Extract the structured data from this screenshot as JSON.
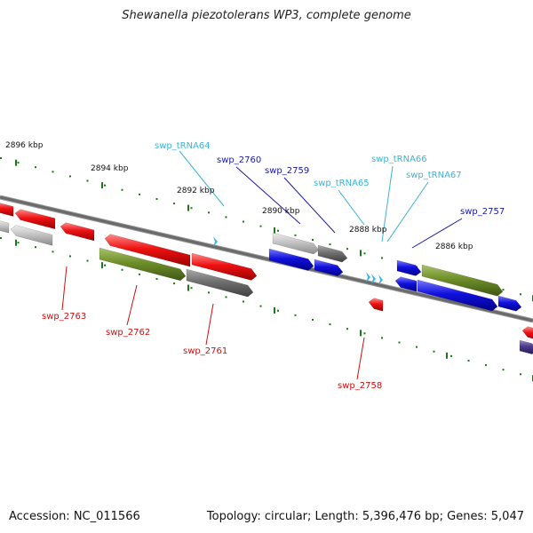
{
  "title": "Shewanella piezotolerans WP3, complete genome",
  "footer": {
    "accession": "Accession: NC_011566",
    "summary": "Topology: circular; Length: 5,396,476 bp; Genes: 5,047"
  },
  "colors": {
    "backbone": "#777777",
    "tick": "#1a7a1a",
    "red_gene": "#ee1111",
    "blue_gene": "#1111dd",
    "olive_gene": "#6f8f2a",
    "gray_gene": "#777777",
    "lightgray_gene": "#c4c4c4",
    "trna": "#39b5e6",
    "label_red": "#cc1111",
    "label_blue": "#1a1aa0",
    "label_cyan": "#3cb3d6"
  },
  "ticks": [
    {
      "label": "2896 kbp"
    },
    {
      "label": "2894 kbp"
    },
    {
      "label": "2892 kbp"
    },
    {
      "label": "2890 kbp"
    },
    {
      "label": "2888 kbp"
    },
    {
      "label": "2886 kbp"
    }
  ],
  "labels": [
    {
      "text": "swp_tRNA64",
      "kind": "trna"
    },
    {
      "text": "swp_2760",
      "kind": "blue"
    },
    {
      "text": "swp_2759",
      "kind": "blue"
    },
    {
      "text": "swp_tRNA65",
      "kind": "trna"
    },
    {
      "text": "swp_tRNA66",
      "kind": "trna"
    },
    {
      "text": "swp_tRNA67",
      "kind": "trna"
    },
    {
      "text": "swp_2757",
      "kind": "blue"
    },
    {
      "text": "swp_2763",
      "kind": "red"
    },
    {
      "text": "swp_2762",
      "kind": "red"
    },
    {
      "text": "swp_2761",
      "kind": "red"
    },
    {
      "text": "swp_2758",
      "kind": "red"
    }
  ]
}
